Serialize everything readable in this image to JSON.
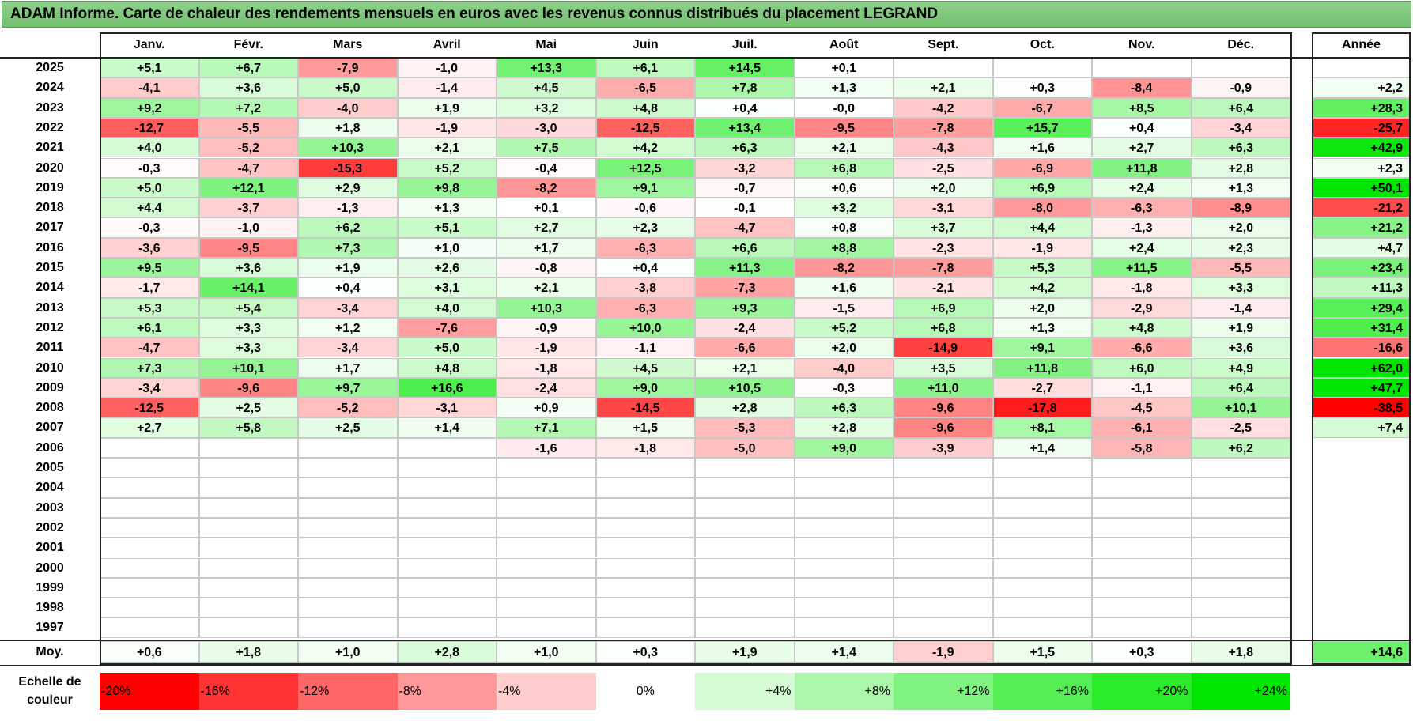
{
  "title": "ADAM Informe. Carte de chaleur des rendements mensuels en euros avec les revenus connus distribués du placement LEGRAND",
  "chart_data": {
    "type": "heatmap",
    "title": "ADAM Informe. Carte de chaleur des rendements mensuels en euros avec les revenus connus distribués du placement LEGRAND",
    "months": [
      "Janv.",
      "Févr.",
      "Mars",
      "Avril",
      "Mai",
      "Juin",
      "Juil.",
      "Août",
      "Sept.",
      "Oct.",
      "Nov.",
      "Déc."
    ],
    "year_header": "Année",
    "rows": [
      {
        "year": "2025",
        "values": [
          "+5,1",
          "+6,7",
          "-7,9",
          "-1,0",
          "+13,3",
          "+6,1",
          "+14,5",
          "+0,1",
          "",
          "",
          "",
          ""
        ],
        "annual": ""
      },
      {
        "year": "2024",
        "values": [
          "-4,1",
          "+3,6",
          "+5,0",
          "-1,4",
          "+4,5",
          "-6,5",
          "+7,8",
          "+1,3",
          "+2,1",
          "+0,3",
          "-8,4",
          "-0,9"
        ],
        "annual": "+2,2"
      },
      {
        "year": "2023",
        "values": [
          "+9,2",
          "+7,2",
          "-4,0",
          "+1,9",
          "+3,2",
          "+4,8",
          "+0,4",
          "-0,0",
          "-4,2",
          "-6,7",
          "+8,5",
          "+6,4"
        ],
        "annual": "+28,3"
      },
      {
        "year": "2022",
        "values": [
          "-12,7",
          "-5,5",
          "+1,8",
          "-1,9",
          "-3,0",
          "-12,5",
          "+13,4",
          "-9,5",
          "-7,8",
          "+15,7",
          "+0,4",
          "-3,4"
        ],
        "annual": "-25,7"
      },
      {
        "year": "2021",
        "values": [
          "+4,0",
          "-5,2",
          "+10,3",
          "+2,1",
          "+7,5",
          "+4,2",
          "+6,3",
          "+2,1",
          "-4,3",
          "+1,6",
          "+2,7",
          "+6,3"
        ],
        "annual": "+42,9"
      },
      {
        "year": "2020",
        "values": [
          "-0,3",
          "-4,7",
          "-15,3",
          "+5,2",
          "-0,4",
          "+12,5",
          "-3,2",
          "+6,8",
          "-2,5",
          "-6,9",
          "+11,8",
          "+2,8"
        ],
        "annual": "+2,3"
      },
      {
        "year": "2019",
        "values": [
          "+5,0",
          "+12,1",
          "+2,9",
          "+9,8",
          "-8,2",
          "+9,1",
          "-0,7",
          "+0,6",
          "+2,0",
          "+6,9",
          "+2,4",
          "+1,3"
        ],
        "annual": "+50,1"
      },
      {
        "year": "2018",
        "values": [
          "+4,4",
          "-3,7",
          "-1,3",
          "+1,3",
          "+0,1",
          "-0,6",
          "-0,1",
          "+3,2",
          "-3,1",
          "-8,0",
          "-6,3",
          "-8,9"
        ],
        "annual": "-21,2"
      },
      {
        "year": "2017",
        "values": [
          "-0,3",
          "-1,0",
          "+6,2",
          "+5,1",
          "+2,7",
          "+2,3",
          "-4,7",
          "+0,8",
          "+3,7",
          "+4,4",
          "-1,3",
          "+2,0"
        ],
        "annual": "+21,2"
      },
      {
        "year": "2016",
        "values": [
          "-3,6",
          "-9,5",
          "+7,3",
          "+1,0",
          "+1,7",
          "-6,3",
          "+6,6",
          "+8,8",
          "-2,3",
          "-1,9",
          "+2,4",
          "+2,3"
        ],
        "annual": "+4,7"
      },
      {
        "year": "2015",
        "values": [
          "+9,5",
          "+3,6",
          "+1,9",
          "+2,6",
          "-0,8",
          "+0,4",
          "+11,3",
          "-8,2",
          "-7,8",
          "+5,3",
          "+11,5",
          "-5,5"
        ],
        "annual": "+23,4"
      },
      {
        "year": "2014",
        "values": [
          "-1,7",
          "+14,1",
          "+0,4",
          "+3,1",
          "+2,1",
          "-3,8",
          "-7,3",
          "+1,6",
          "-2,1",
          "+4,2",
          "-1,8",
          "+3,3"
        ],
        "annual": "+11,3"
      },
      {
        "year": "2013",
        "values": [
          "+5,3",
          "+5,4",
          "-3,4",
          "+4,0",
          "+10,3",
          "-6,3",
          "+9,3",
          "-1,5",
          "+6,9",
          "+2,0",
          "-2,9",
          "-1,4"
        ],
        "annual": "+29,4"
      },
      {
        "year": "2012",
        "values": [
          "+6,1",
          "+3,3",
          "+1,2",
          "-7,6",
          "-0,9",
          "+10,0",
          "-2,4",
          "+5,2",
          "+6,8",
          "+1,3",
          "+4,8",
          "+1,9"
        ],
        "annual": "+31,4"
      },
      {
        "year": "2011",
        "values": [
          "-4,7",
          "+3,3",
          "-3,4",
          "+5,0",
          "-1,9",
          "-1,1",
          "-6,6",
          "+2,0",
          "-14,9",
          "+9,1",
          "-6,6",
          "+3,6"
        ],
        "annual": "-16,6"
      },
      {
        "year": "2010",
        "values": [
          "+7,3",
          "+10,1",
          "+1,7",
          "+4,8",
          "-1,8",
          "+4,5",
          "+2,1",
          "-4,0",
          "+3,5",
          "+11,8",
          "+6,0",
          "+4,9"
        ],
        "annual": "+62,0"
      },
      {
        "year": "2009",
        "values": [
          "-3,4",
          "-9,6",
          "+9,7",
          "+16,6",
          "-2,4",
          "+9,0",
          "+10,5",
          "-0,3",
          "+11,0",
          "-2,7",
          "-1,1",
          "+6,4"
        ],
        "annual": "+47,7"
      },
      {
        "year": "2008",
        "values": [
          "-12,5",
          "+2,5",
          "-5,2",
          "-3,1",
          "+0,9",
          "-14,5",
          "+2,8",
          "+6,3",
          "-9,6",
          "-17,8",
          "-4,5",
          "+10,1"
        ],
        "annual": "-38,5"
      },
      {
        "year": "2007",
        "values": [
          "+2,7",
          "+5,8",
          "+2,5",
          "+1,4",
          "+7,1",
          "+1,5",
          "-5,3",
          "+2,8",
          "-9,6",
          "+8,1",
          "-6,1",
          "-2,5"
        ],
        "annual": "+7,4"
      },
      {
        "year": "2006",
        "values": [
          "",
          "",
          "",
          "",
          "-1,6",
          "-1,8",
          "-5,0",
          "+9,0",
          "-3,9",
          "+1,4",
          "-5,8",
          "+6,2"
        ],
        "annual": ""
      },
      {
        "year": "2005",
        "values": [
          "",
          "",
          "",
          "",
          "",
          "",
          "",
          "",
          "",
          "",
          "",
          ""
        ],
        "annual": ""
      },
      {
        "year": "2004",
        "values": [
          "",
          "",
          "",
          "",
          "",
          "",
          "",
          "",
          "",
          "",
          "",
          ""
        ],
        "annual": ""
      },
      {
        "year": "2003",
        "values": [
          "",
          "",
          "",
          "",
          "",
          "",
          "",
          "",
          "",
          "",
          "",
          ""
        ],
        "annual": ""
      },
      {
        "year": "2002",
        "values": [
          "",
          "",
          "",
          "",
          "",
          "",
          "",
          "",
          "",
          "",
          "",
          ""
        ],
        "annual": ""
      },
      {
        "year": "2001",
        "values": [
          "",
          "",
          "",
          "",
          "",
          "",
          "",
          "",
          "",
          "",
          "",
          ""
        ],
        "annual": ""
      },
      {
        "year": "2000",
        "values": [
          "",
          "",
          "",
          "",
          "",
          "",
          "",
          "",
          "",
          "",
          "",
          ""
        ],
        "annual": ""
      },
      {
        "year": "1999",
        "values": [
          "",
          "",
          "",
          "",
          "",
          "",
          "",
          "",
          "",
          "",
          "",
          ""
        ],
        "annual": ""
      },
      {
        "year": "1998",
        "values": [
          "",
          "",
          "",
          "",
          "",
          "",
          "",
          "",
          "",
          "",
          "",
          ""
        ],
        "annual": ""
      },
      {
        "year": "1997",
        "values": [
          "",
          "",
          "",
          "",
          "",
          "",
          "",
          "",
          "",
          "",
          "",
          ""
        ],
        "annual": ""
      }
    ],
    "average": {
      "label": "Moy.",
      "values": [
        "+0,6",
        "+1,8",
        "+1,0",
        "+2,8",
        "+1,0",
        "+0,3",
        "+1,9",
        "+1,4",
        "-1,9",
        "+1,5",
        "+0,3",
        "+1,8"
      ],
      "annual": "+14,6"
    },
    "scale": {
      "label_line1": "Echelle de",
      "label_line2": "couleur",
      "stops": [
        {
          "label": "-20%",
          "value": -20,
          "color": "#ff0000"
        },
        {
          "label": "-16%",
          "value": -16,
          "color": "#ff3333"
        },
        {
          "label": "-12%",
          "value": -12,
          "color": "#ff6666"
        },
        {
          "label": "-8%",
          "value": -8,
          "color": "#ff9999"
        },
        {
          "label": "-4%",
          "value": -4,
          "color": "#ffcccc"
        },
        {
          "label": "0%",
          "value": 0,
          "color": "#ffffff"
        },
        {
          "label": "+4%",
          "value": 4,
          "color": "#d5fbd5"
        },
        {
          "label": "+8%",
          "value": 8,
          "color": "#aaf7aa"
        },
        {
          "label": "+12%",
          "value": 12,
          "color": "#80f380"
        },
        {
          "label": "+16%",
          "value": 16,
          "color": "#55ef55"
        },
        {
          "label": "+20%",
          "value": 20,
          "color": "#2beb2b"
        },
        {
          "label": "+24%",
          "value": 24,
          "color": "#00e600"
        }
      ]
    }
  }
}
